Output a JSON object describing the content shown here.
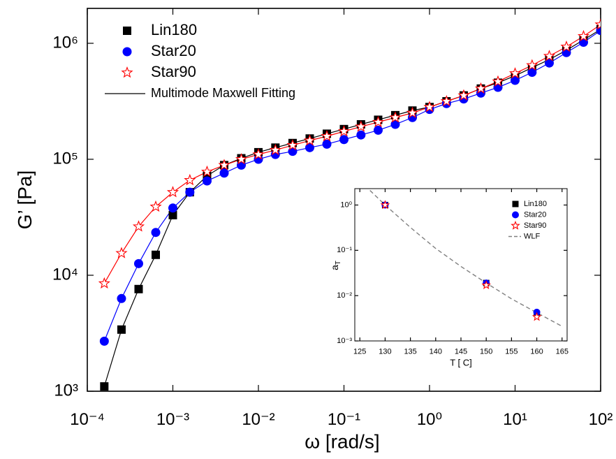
{
  "chart_data": [
    {
      "type": "scatter",
      "x_label": "ω [rad/s]",
      "y_label": "G’ [Pa]",
      "log_x": true,
      "log_y": true,
      "xlim": [
        0.0001,
        100
      ],
      "ylim": [
        1000,
        2000000
      ],
      "xticks": [
        {
          "value": 0.0001,
          "label": "10⁻⁴"
        },
        {
          "value": 0.001,
          "label": "10⁻³"
        },
        {
          "value": 0.01,
          "label": "10⁻²"
        },
        {
          "value": 0.1,
          "label": "10⁻¹"
        },
        {
          "value": 1,
          "label": "10⁰"
        },
        {
          "value": 10,
          "label": "10¹"
        },
        {
          "value": 100,
          "label": "10²"
        }
      ],
      "yticks": [
        {
          "value": 1000,
          "label": "10³"
        },
        {
          "value": 10000,
          "label": "10⁴"
        },
        {
          "value": 100000,
          "label": "10⁵"
        },
        {
          "value": 1000000,
          "label": "10⁶"
        }
      ],
      "legend": "upper left",
      "fit_label": "Multimode Maxwell Fitting",
      "fit_color": "#000000",
      "x": [
        0.000158,
        0.000251,
        0.000398,
        0.000631,
        0.001,
        0.00158,
        0.00251,
        0.00398,
        0.00631,
        0.01,
        0.0158,
        0.0251,
        0.0398,
        0.0631,
        0.1,
        0.158,
        0.251,
        0.398,
        0.631,
        1,
        1.58,
        2.51,
        3.98,
        6.31,
        10,
        15.8,
        25.1,
        39.8,
        63.1,
        100
      ],
      "series": [
        {
          "name": "Lin180",
          "color": "#000000",
          "marker": "square",
          "line_style": "solid",
          "values": [
            1100,
            3400,
            7600,
            15000,
            33000,
            52000,
            72000,
            89000,
            102000,
            115000,
            126000,
            138000,
            151000,
            166000,
            182000,
            200000,
            219000,
            240000,
            263000,
            282000,
            316000,
            355000,
            407000,
            457000,
            525000,
            617000,
            724000,
            871000,
            1070000,
            1320000
          ]
        },
        {
          "name": "Star20",
          "color": "#0000ff",
          "marker": "circle",
          "line_style": "solid",
          "values": [
            2700,
            6300,
            12600,
            23400,
            38000,
            52000,
            65000,
            76000,
            89000,
            100000,
            110000,
            117000,
            126000,
            135000,
            148000,
            162000,
            178000,
            200000,
            229000,
            269000,
            302000,
            331000,
            372000,
            417000,
            479000,
            562000,
            676000,
            832000,
            1020000,
            1290000
          ]
        },
        {
          "name": "Star90",
          "color": "#ff0000",
          "marker": "star",
          "line_style": "solid",
          "values": [
            8500,
            15500,
            26300,
            39000,
            52000,
            66000,
            78000,
            89000,
            100000,
            110000,
            120000,
            132000,
            145000,
            158000,
            174000,
            191000,
            209000,
            229000,
            251000,
            282000,
            316000,
            355000,
            407000,
            468000,
            550000,
            646000,
            776000,
            933000,
            1150000,
            1450000
          ]
        }
      ]
    },
    {
      "type": "scatter",
      "x_label": "T [ C]",
      "y_label": "a",
      "y_label_subscript": "T",
      "log_y": true,
      "xlim": [
        124,
        166
      ],
      "ylim": [
        0.001,
        2.3
      ],
      "xticks": [
        125,
        130,
        135,
        140,
        145,
        150,
        155,
        160,
        165
      ],
      "yticks": [
        {
          "value": 1,
          "label": "10⁰"
        },
        {
          "value": 0.1,
          "label": "10⁻¹"
        },
        {
          "value": 0.01,
          "label": "10⁻²"
        },
        {
          "value": 0.001,
          "label": "10⁻³"
        }
      ],
      "legend": "upper right",
      "x": [
        130,
        150,
        160
      ],
      "series": [
        {
          "name": "Lin180",
          "color": "#000000",
          "marker": "square",
          "values": [
            1,
            0.019,
            0.004
          ]
        },
        {
          "name": "Star20",
          "color": "#0000ff",
          "marker": "circle",
          "values": [
            1,
            0.019,
            0.0043
          ]
        },
        {
          "name": "Star90",
          "color": "#ff0000",
          "marker": "star",
          "values": [
            1,
            0.017,
            0.0034
          ]
        },
        {
          "name": "WLF",
          "color": "#808080",
          "line_style": "dashed",
          "x": [
            127,
            130,
            135,
            140,
            145,
            150,
            155,
            160,
            165
          ],
          "values": [
            2.1,
            1,
            0.32,
            0.11,
            0.044,
            0.019,
            0.0085,
            0.0042,
            0.0021
          ]
        }
      ]
    }
  ]
}
